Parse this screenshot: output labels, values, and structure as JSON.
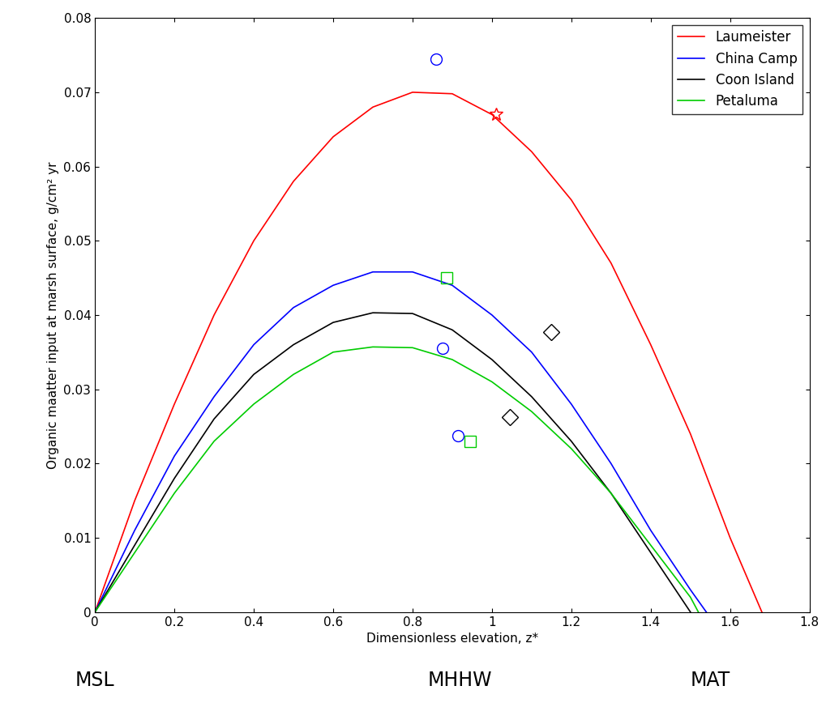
{
  "chart_data": {
    "type": "line",
    "x_label": "Dimensionless elevation, z*",
    "y_label": "Organic maatter input at marsh surface, g/cm² yr",
    "xlim": [
      0,
      1.8
    ],
    "ylim": [
      0,
      0.08
    ],
    "xticks": [
      0,
      0.2,
      0.4,
      0.6,
      0.8,
      1,
      1.2,
      1.4,
      1.6,
      1.8
    ],
    "yticks": [
      0,
      0.01,
      0.02,
      0.03,
      0.04,
      0.05,
      0.06,
      0.07,
      0.08
    ],
    "legend": "upper right",
    "grid": false,
    "annotations": [
      {
        "text": "MSL",
        "x": 0
      },
      {
        "text": "MHHW",
        "x": 0.92
      },
      {
        "text": "MAT",
        "x": 1.55
      }
    ],
    "series": [
      {
        "name": "Laumeister",
        "color": "#ff0000",
        "marker": "star",
        "x": [
          0,
          0.1,
          0.2,
          0.3,
          0.4,
          0.5,
          0.6,
          0.7,
          0.8,
          0.9,
          1.0,
          1.1,
          1.2,
          1.3,
          1.4,
          1.5,
          1.6,
          1.68
        ],
        "values": [
          0,
          0.015,
          0.028,
          0.04,
          0.05,
          0.058,
          0.064,
          0.068,
          0.07,
          0.0698,
          0.067,
          0.062,
          0.0555,
          0.047,
          0.036,
          0.024,
          0.01,
          0
        ],
        "observed_x": [
          1.01
        ],
        "observed_values": [
          0.067
        ]
      },
      {
        "name": "China Camp",
        "color": "#0000ff",
        "marker": "circle",
        "x": [
          0,
          0.1,
          0.2,
          0.3,
          0.4,
          0.5,
          0.6,
          0.7,
          0.8,
          0.9,
          1.0,
          1.1,
          1.2,
          1.3,
          1.4,
          1.5,
          1.54
        ],
        "values": [
          0,
          0.011,
          0.021,
          0.029,
          0.036,
          0.041,
          0.044,
          0.0458,
          0.0458,
          0.044,
          0.04,
          0.035,
          0.028,
          0.02,
          0.011,
          0.003,
          0
        ],
        "observed_x": [
          0.86,
          0.875,
          0.915
        ],
        "observed_values": [
          0.0745,
          0.0355,
          0.0237
        ]
      },
      {
        "name": "Coon Island",
        "color": "#000000",
        "marker": "diamond",
        "x": [
          0,
          0.1,
          0.2,
          0.3,
          0.4,
          0.5,
          0.6,
          0.7,
          0.8,
          0.9,
          1.0,
          1.1,
          1.2,
          1.3,
          1.4,
          1.5
        ],
        "values": [
          0,
          0.009,
          0.018,
          0.026,
          0.032,
          0.036,
          0.039,
          0.0403,
          0.0402,
          0.038,
          0.034,
          0.029,
          0.023,
          0.016,
          0.008,
          0
        ],
        "observed_x": [
          1.15,
          1.045
        ],
        "observed_values": [
          0.0377,
          0.0263
        ]
      },
      {
        "name": "Petaluma",
        "color": "#00cc00",
        "marker": "square",
        "x": [
          0,
          0.1,
          0.2,
          0.3,
          0.4,
          0.5,
          0.6,
          0.7,
          0.8,
          0.9,
          1.0,
          1.1,
          1.2,
          1.3,
          1.4,
          1.5,
          1.52
        ],
        "values": [
          0,
          0.008,
          0.016,
          0.023,
          0.028,
          0.032,
          0.035,
          0.0357,
          0.0356,
          0.034,
          0.031,
          0.027,
          0.022,
          0.016,
          0.009,
          0.002,
          0
        ],
        "observed_x": [
          0.885,
          0.945
        ],
        "observed_values": [
          0.045,
          0.023
        ]
      }
    ]
  }
}
